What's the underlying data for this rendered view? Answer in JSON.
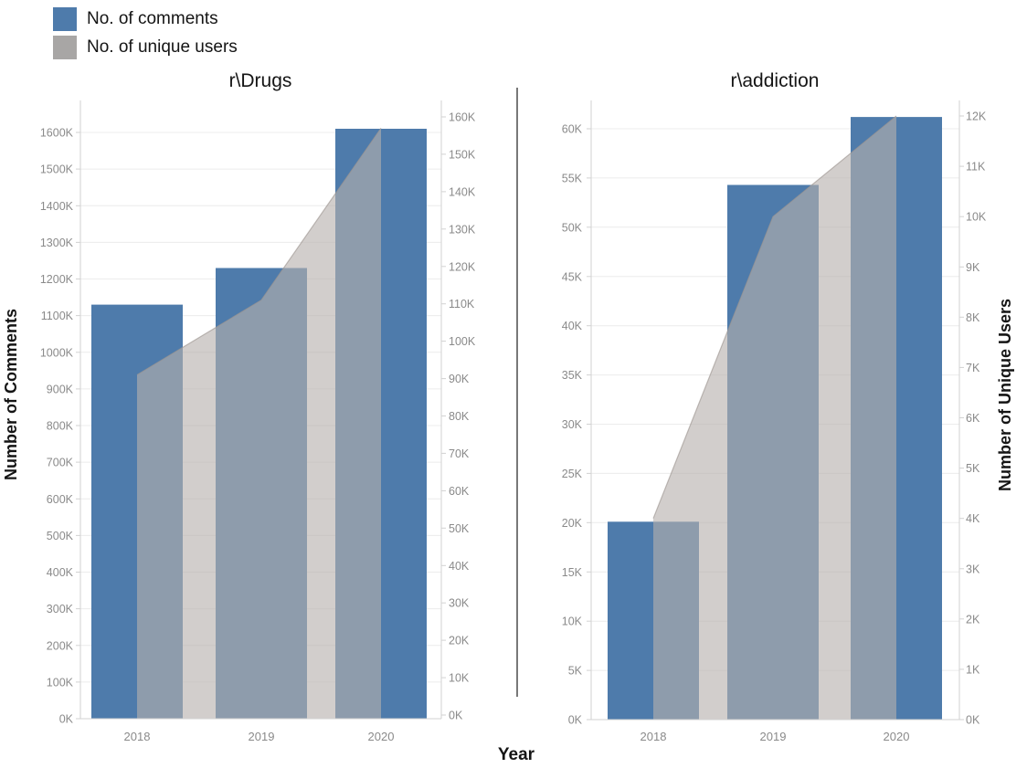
{
  "legend": {
    "items": [
      {
        "label": "No. of comments",
        "color": "#4e7bab",
        "mark": "bar"
      },
      {
        "label": "No. of unique users",
        "color": "#a8a6a5",
        "mark": "area"
      }
    ]
  },
  "xlabel": "Year",
  "colors": {
    "bar": "#4e7bab",
    "area_fill": "rgba(183,176,172,0.62)",
    "area_edge": "rgba(158,150,146,0.65)",
    "grid": "#ececec",
    "axis_line": "#d2d2d2",
    "tick_text": "#8a8a8a",
    "divider": "#3f3f3f",
    "text": "#151515"
  },
  "chart_data": [
    {
      "type": "bar",
      "subtype": "dual-axis bar + area",
      "title": "r\\Drugs",
      "categories": [
        "2018",
        "2019",
        "2020"
      ],
      "unit": "K",
      "series": [
        {
          "name": "No. of comments",
          "mark": "bar",
          "axis": "left",
          "values_K": [
            1130,
            1230,
            1610
          ]
        },
        {
          "name": "No. of unique users",
          "mark": "area",
          "axis": "right",
          "values_K": [
            91,
            111,
            157
          ]
        }
      ],
      "left_axis": {
        "title": "Number of Comments",
        "range_K": [
          0,
          1600
        ],
        "tick_step_K": 100,
        "tick_labels": [
          "0K",
          "100K",
          "200K",
          "300K",
          "400K",
          "500K",
          "600K",
          "700K",
          "800K",
          "900K",
          "1000K",
          "1100K",
          "1200K",
          "1300K",
          "1400K",
          "1500K",
          "1600K"
        ]
      },
      "right_axis": {
        "title": "",
        "range_K": [
          0,
          160
        ],
        "tick_step_K": 10,
        "tick_labels": [
          "0K",
          "10K",
          "20K",
          "30K",
          "40K",
          "50K",
          "60K",
          "70K",
          "80K",
          "90K",
          "100K",
          "110K",
          "120K",
          "130K",
          "140K",
          "150K",
          "160K"
        ]
      },
      "xlabel": "Year",
      "grid": "horizontal",
      "legend_position": "top-left"
    },
    {
      "type": "bar",
      "subtype": "dual-axis bar + area",
      "title": "r\\addiction",
      "categories": [
        "2018",
        "2019",
        "2020"
      ],
      "unit": "K",
      "series": [
        {
          "name": "No. of comments",
          "mark": "bar",
          "axis": "left",
          "values_K": [
            20.1,
            54.3,
            61.2
          ]
        },
        {
          "name": "No. of unique users",
          "mark": "area",
          "axis": "right",
          "values_K": [
            4,
            10,
            12
          ]
        }
      ],
      "left_axis": {
        "title": "",
        "range_K": [
          0,
          60
        ],
        "tick_step_K": 5,
        "tick_labels": [
          "0K",
          "5K",
          "10K",
          "15K",
          "20K",
          "25K",
          "30K",
          "35K",
          "40K",
          "45K",
          "50K",
          "55K",
          "60K"
        ]
      },
      "right_axis": {
        "title": "Number of Unique Users",
        "range_K": [
          0,
          12
        ],
        "tick_step_K": 1,
        "tick_labels": [
          "0K",
          "1K",
          "2K",
          "3K",
          "4K",
          "5K",
          "6K",
          "7K",
          "8K",
          "9K",
          "10K",
          "11K",
          "12K"
        ]
      },
      "xlabel": "Year",
      "grid": "horizontal",
      "legend_position": "top-left"
    }
  ]
}
